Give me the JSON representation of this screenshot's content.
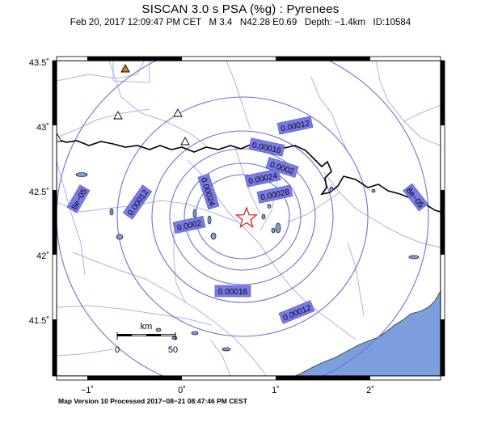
{
  "title": "SISCAN 3.0 s PSA (%g) : Pyrenees",
  "subtitle": "Feb 20, 2017 12:09:47 PM CET   M 3.4   N42.28 E0.69   Depth: −1.4km   ID:10584",
  "footer": "Map Version 10 Processed 2017−08−21 08:47:46 PM CEST",
  "axes": {
    "lat_ticks": [
      "43.5˚",
      "43˚",
      "42.5˚",
      "42˚",
      "41.5˚"
    ],
    "lon_ticks": [
      "−1˚",
      "0˚",
      "1˚",
      "2˚"
    ]
  },
  "scale_bar": {
    "unit": "km",
    "start": "0",
    "end": "50"
  },
  "contours": [
    {
      "label": "0.00012"
    },
    {
      "label": "0.00016"
    },
    {
      "label": "0.0002"
    },
    {
      "label": "0.00024"
    },
    {
      "label": "0.00028"
    },
    {
      "label": "8e−05"
    },
    {
      "label": "0.00012"
    },
    {
      "label": "0.0002"
    },
    {
      "label": "0.00024"
    },
    {
      "label": "0.00016"
    },
    {
      "label": "0.00012"
    },
    {
      "label": "8e−05"
    }
  ],
  "epicenter": {
    "icon": "star-icon",
    "color": "#e02020",
    "lat": 42.28,
    "lon": 0.69
  },
  "stations": [
    {
      "type": "triangle-open"
    },
    {
      "type": "triangle-open"
    },
    {
      "type": "triangle-open"
    },
    {
      "type": "triangle-open"
    },
    {
      "type": "triangle-filled",
      "color": "#e07820"
    }
  ],
  "colors": {
    "contour": "#7070d8",
    "rivers": "#a8b4e4",
    "sea": "#7a9fdc",
    "border": "#000000"
  }
}
